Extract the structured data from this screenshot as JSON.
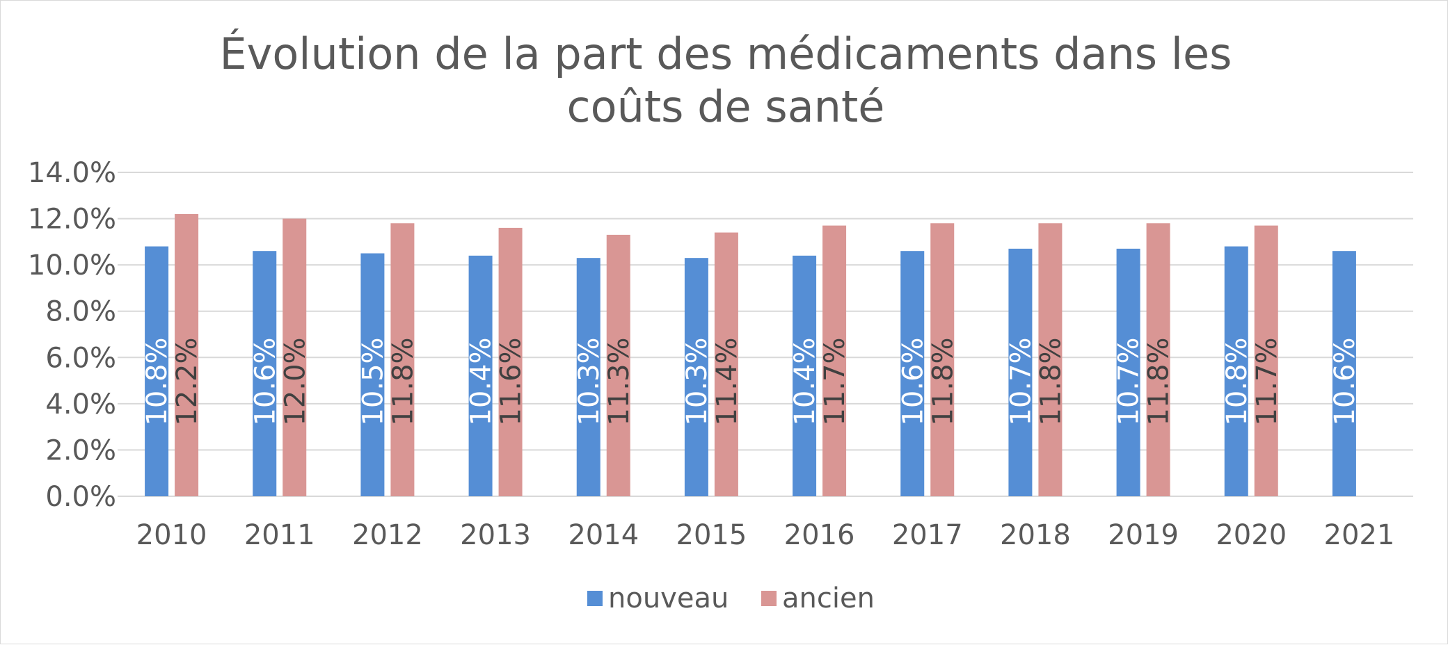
{
  "chart_data": {
    "type": "bar",
    "title_lines": [
      "Évolution de la part des médicaments dans les",
      "coûts de santé"
    ],
    "categories": [
      "2010",
      "2011",
      "2012",
      "2013",
      "2014",
      "2015",
      "2016",
      "2017",
      "2018",
      "2019",
      "2020",
      "2021"
    ],
    "series": [
      {
        "name": "nouveau",
        "color": "#558ed5",
        "label_color": "#ffffff",
        "values": [
          10.8,
          10.6,
          10.5,
          10.4,
          10.3,
          10.3,
          10.4,
          10.6,
          10.7,
          10.7,
          10.8,
          10.6
        ],
        "labels": [
          "10.8%",
          "10.6%",
          "10.5%",
          "10.4%",
          "10.3%",
          "10.3%",
          "10.4%",
          "10.6%",
          "10.7%",
          "10.7%",
          "10.8%",
          "10.6%"
        ]
      },
      {
        "name": "ancien",
        "color": "#d99694",
        "label_color": "#404040",
        "values": [
          12.2,
          12.0,
          11.8,
          11.6,
          11.3,
          11.4,
          11.7,
          11.8,
          11.8,
          11.8,
          11.7,
          null
        ],
        "labels": [
          "12.2%",
          "12.0%",
          "11.8%",
          "11.6%",
          "11.3%",
          "11.4%",
          "11.7%",
          "11.8%",
          "11.8%",
          "11.8%",
          "11.7%",
          null
        ]
      }
    ],
    "ylim": [
      0,
      14
    ],
    "yticks": [
      0,
      2,
      4,
      6,
      8,
      10,
      12,
      14
    ],
    "ytick_labels": [
      "0.0%",
      "2.0%",
      "4.0%",
      "6.0%",
      "8.0%",
      "10.0%",
      "12.0%",
      "14.0%"
    ],
    "grid": true,
    "grid_color": "#d9d9d9",
    "legend": "bottom",
    "data_label_orientation": "vertical"
  }
}
